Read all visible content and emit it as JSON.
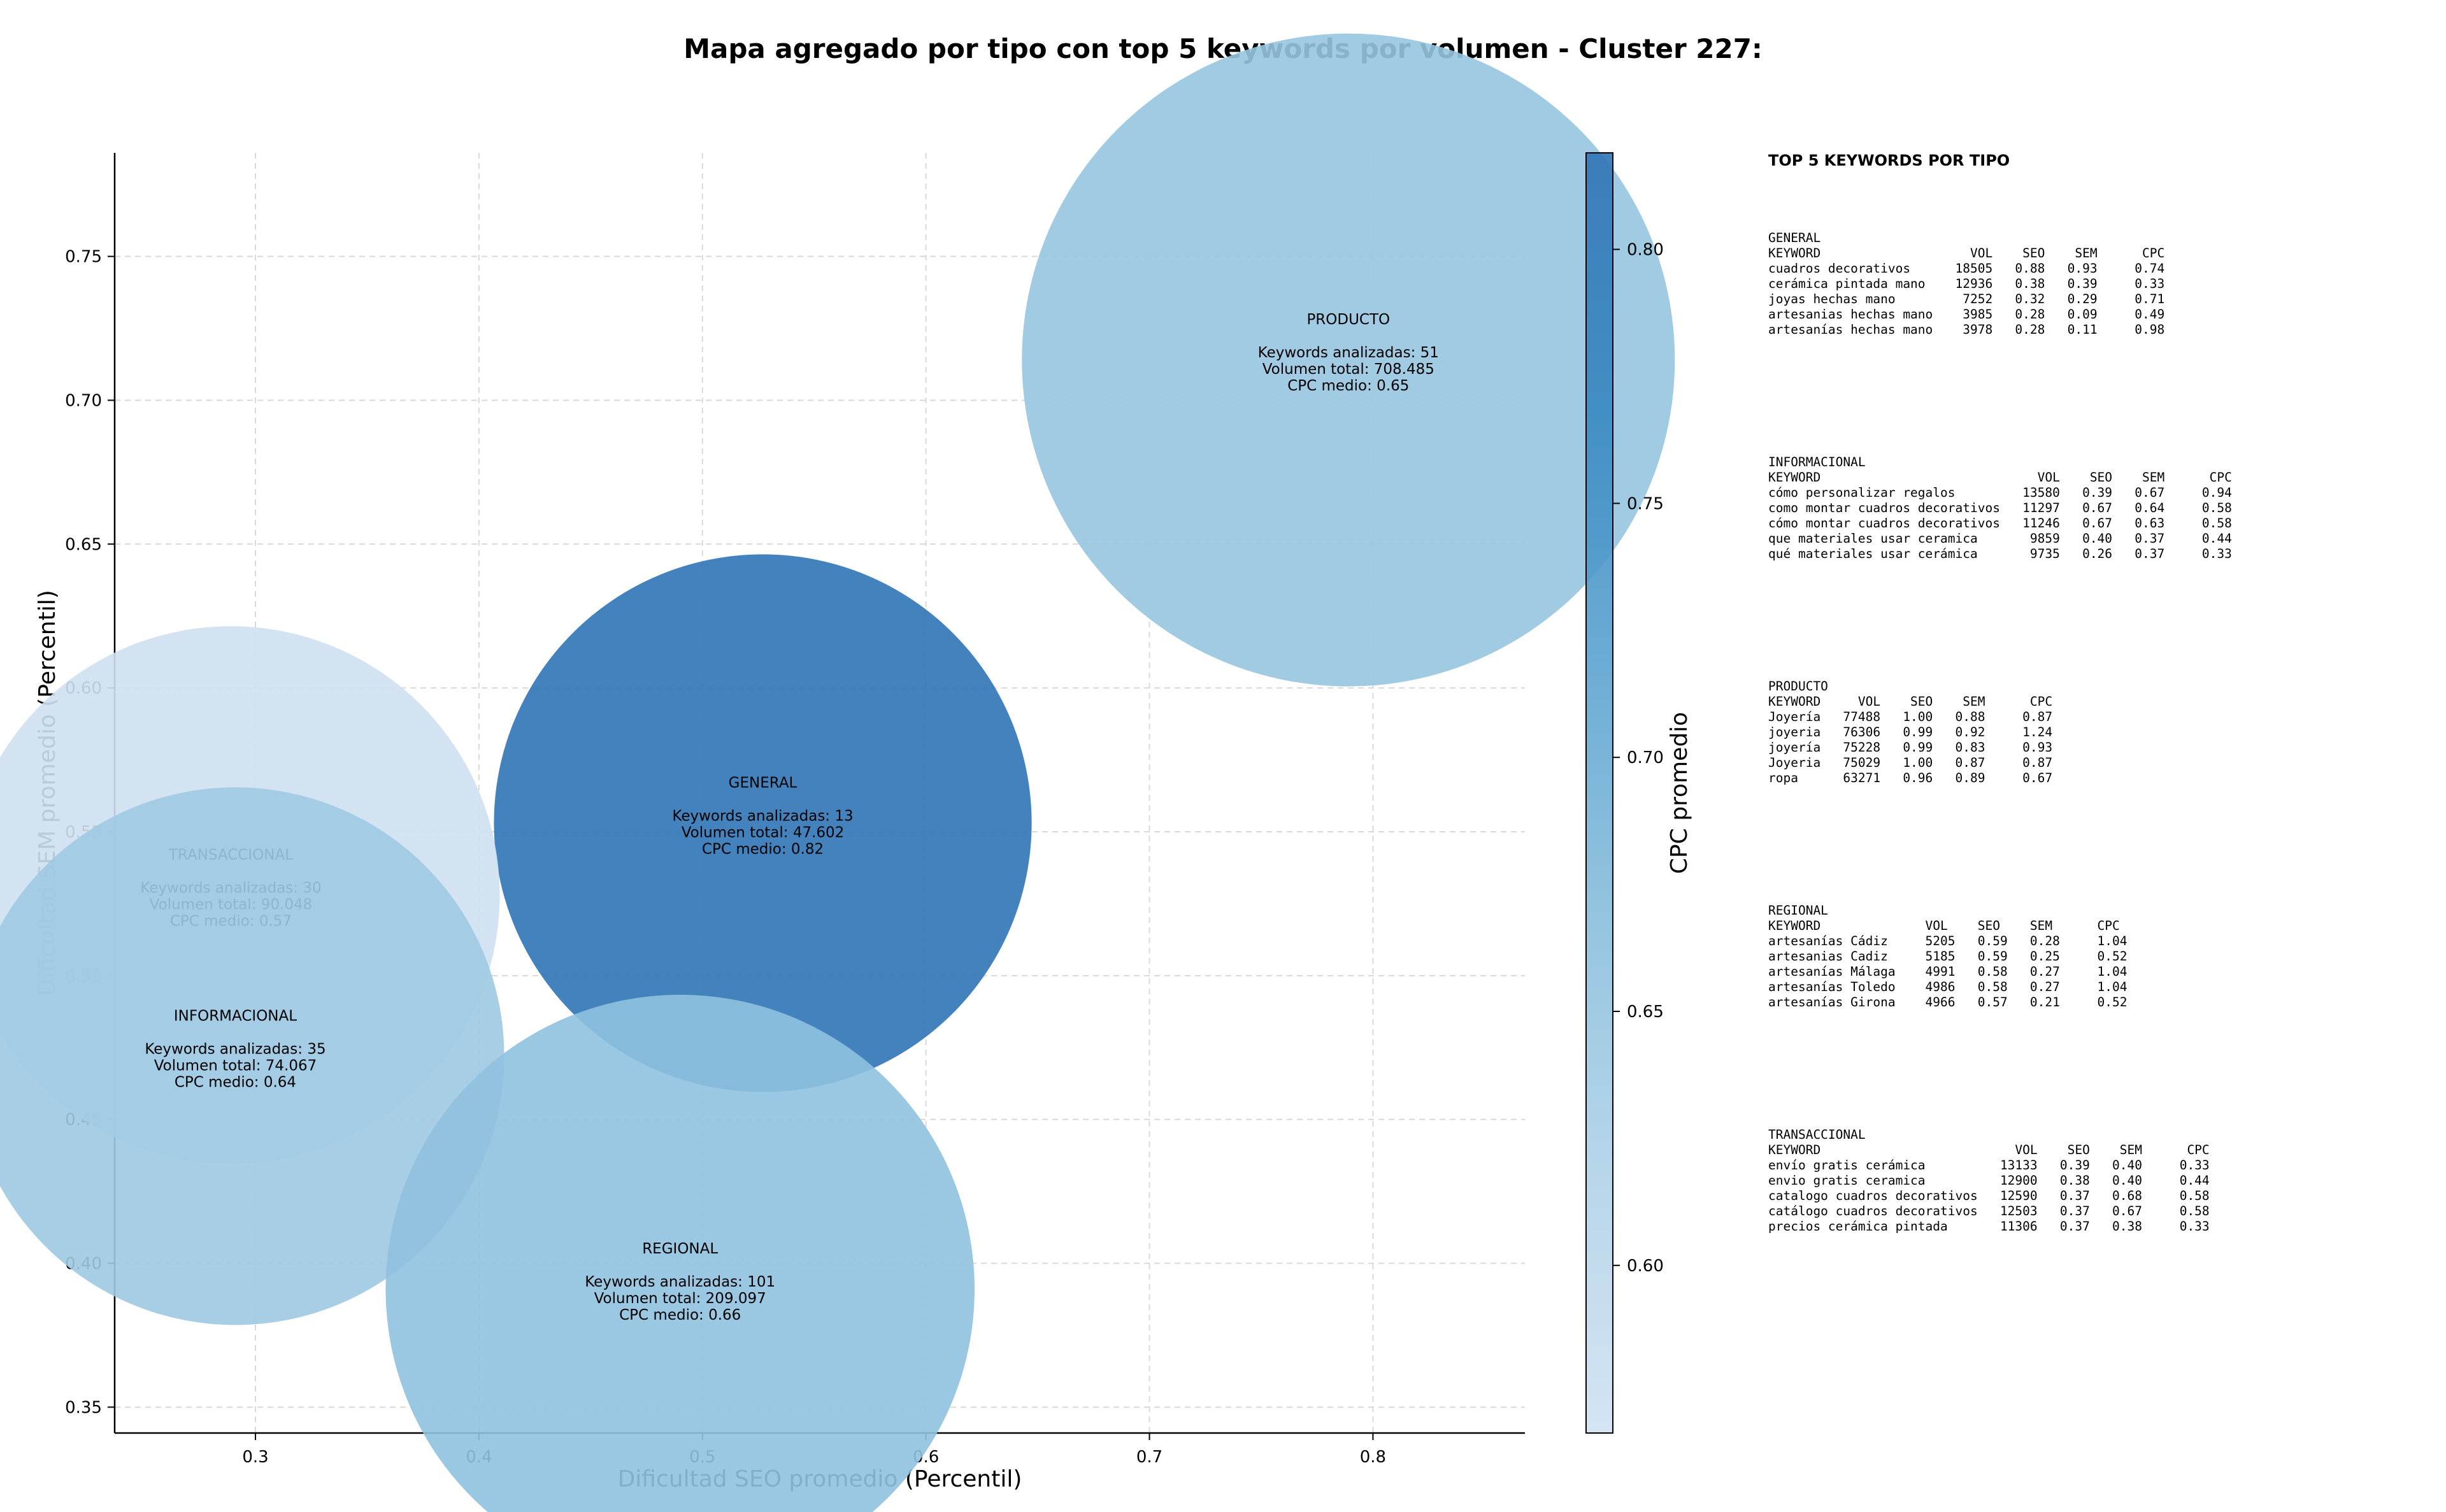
{
  "chart_data": {
    "type": "scatter",
    "title": "Mapa agregado por tipo con top 5 keywords por volumen - Cluster 227:",
    "xlabel": "Dificultad SEO promedio (Percentil)",
    "ylabel": "Dificultad SEM promedio (Percentil)",
    "xlim": [
      0.237,
      0.868
    ],
    "ylim": [
      0.341,
      0.786
    ],
    "xticks": [
      "0.3",
      "0.4",
      "0.5",
      "0.6",
      "0.7",
      "0.8"
    ],
    "yticks": [
      "0.35",
      "0.40",
      "0.45",
      "0.50",
      "0.55",
      "0.60",
      "0.65",
      "0.70",
      "0.75"
    ],
    "grid": true,
    "colorbar": {
      "label": "CPC promedio",
      "range": [
        0.567,
        0.819
      ],
      "ticks": [
        "0.60",
        "0.65",
        "0.70",
        "0.75",
        "0.80"
      ],
      "colormap": [
        "#d0e1f2",
        "#b0d2e8",
        "#89bedc",
        "#5ba3d0",
        "#3887c0",
        "#2f74b5"
      ]
    },
    "label_prefixes": {
      "keywords": "Keywords analizadas: ",
      "volume": "Volumen total: ",
      "cpc": "CPC medio: "
    },
    "points": [
      {
        "name": "PRODUCTO",
        "x": 0.789,
        "y": 0.714,
        "keywords": 51,
        "volume": "708.485",
        "cpc": 0.65,
        "size": 51
      },
      {
        "name": "GENERAL",
        "x": 0.527,
        "y": 0.553,
        "keywords": 13,
        "volume": "47.602",
        "cpc": 0.82,
        "size": 42
      },
      {
        "name": "TRANSACCIONAL",
        "x": 0.289,
        "y": 0.528,
        "keywords": 30,
        "volume": "90.048",
        "cpc": 0.57,
        "size": 42
      },
      {
        "name": "INFORMACIONAL",
        "x": 0.291,
        "y": 0.472,
        "keywords": 35,
        "volume": "74.067",
        "cpc": 0.64,
        "size": 42
      },
      {
        "name": "REGIONAL",
        "x": 0.49,
        "y": 0.391,
        "keywords": 101,
        "volume": "209.097",
        "cpc": 0.66,
        "size": 46
      }
    ]
  },
  "panel": {
    "heading": "TOP 5 KEYWORDS POR TIPO",
    "blocks": [
      {
        "title": "GENERAL",
        "lines": [
          "KEYWORD                    VOL    SEO    SEM      CPC",
          "cuadros decorativos      18505   0.88   0.93     0.74",
          "cerámica pintada mano    12936   0.38   0.39     0.33",
          "joyas hechas mano         7252   0.32   0.29     0.71",
          "artesanias hechas mano    3985   0.28   0.09     0.49",
          "artesanías hechas mano    3978   0.28   0.11     0.98"
        ]
      },
      {
        "title": "INFORMACIONAL",
        "lines": [
          "KEYWORD                             VOL    SEO    SEM      CPC",
          "cómo personalizar regalos         13580   0.39   0.67     0.94",
          "como montar cuadros decorativos   11297   0.67   0.64     0.58",
          "cómo montar cuadros decorativos   11246   0.67   0.63     0.58",
          "que materiales usar ceramica       9859   0.40   0.37     0.44",
          "qué materiales usar cerámica       9735   0.26   0.37     0.33"
        ]
      },
      {
        "title": "PRODUCTO",
        "lines": [
          "KEYWORD     VOL    SEO    SEM      CPC",
          "Joyería   77488   1.00   0.88     0.87",
          "joyeria   76306   0.99   0.92     1.24",
          "joyería   75228   0.99   0.83     0.93",
          "Joyeria   75029   1.00   0.87     0.87",
          "ropa      63271   0.96   0.89     0.67"
        ]
      },
      {
        "title": "REGIONAL",
        "lines": [
          "KEYWORD              VOL    SEO    SEM      CPC",
          "artesanías Cádiz     5205   0.59   0.28     1.04",
          "artesanias Cadiz     5185   0.59   0.25     0.52",
          "artesanías Málaga    4991   0.58   0.27     1.04",
          "artesanías Toledo    4986   0.58   0.27     1.04",
          "artesanías Girona    4966   0.57   0.21     0.52"
        ]
      },
      {
        "title": "TRANSACCIONAL",
        "lines": [
          "KEYWORD                          VOL    SEO    SEM      CPC",
          "envío gratis cerámica          13133   0.39   0.40     0.33",
          "envio gratis ceramica          12900   0.38   0.40     0.44",
          "catalogo cuadros decorativos   12590   0.37   0.68     0.58",
          "catálogo cuadros decorativos   12503   0.37   0.67     0.58",
          "precios cerámica pintada       11306   0.37   0.38     0.33"
        ]
      }
    ]
  }
}
